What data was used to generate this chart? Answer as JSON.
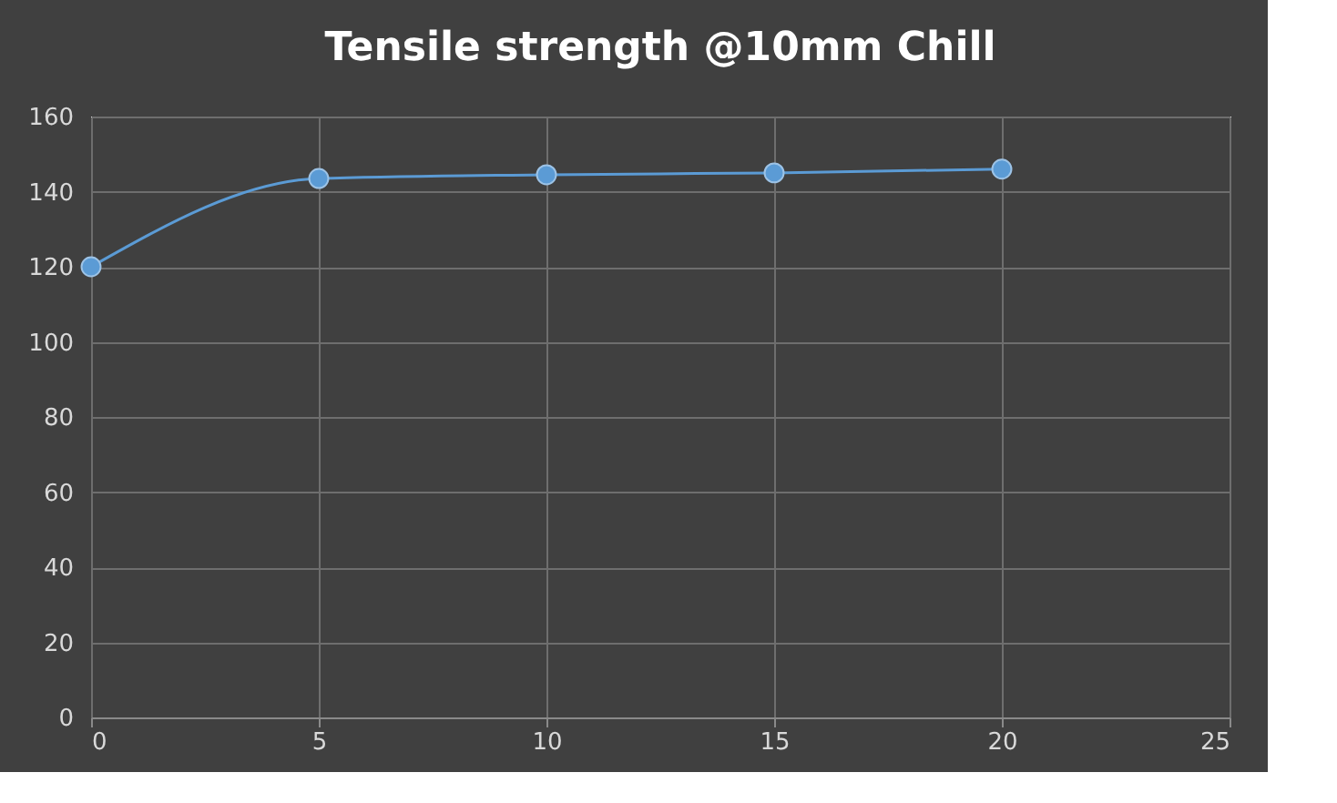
{
  "chart_data": {
    "type": "line",
    "title": "Tensile strength @10mm Chill",
    "x": [
      0,
      5,
      10,
      15,
      20
    ],
    "series": [
      {
        "color": "#5b9bd5",
        "values": [
          120,
          143.5,
          144.5,
          145,
          146
        ]
      }
    ],
    "xlim": [
      0,
      25
    ],
    "xticks": [
      0,
      5,
      10,
      15,
      20,
      25
    ],
    "ylim": [
      0,
      160
    ],
    "yticks": [
      0,
      20,
      40,
      60,
      80,
      100,
      120,
      140,
      160
    ],
    "grid": true,
    "marker": "circle",
    "legend": false
  }
}
